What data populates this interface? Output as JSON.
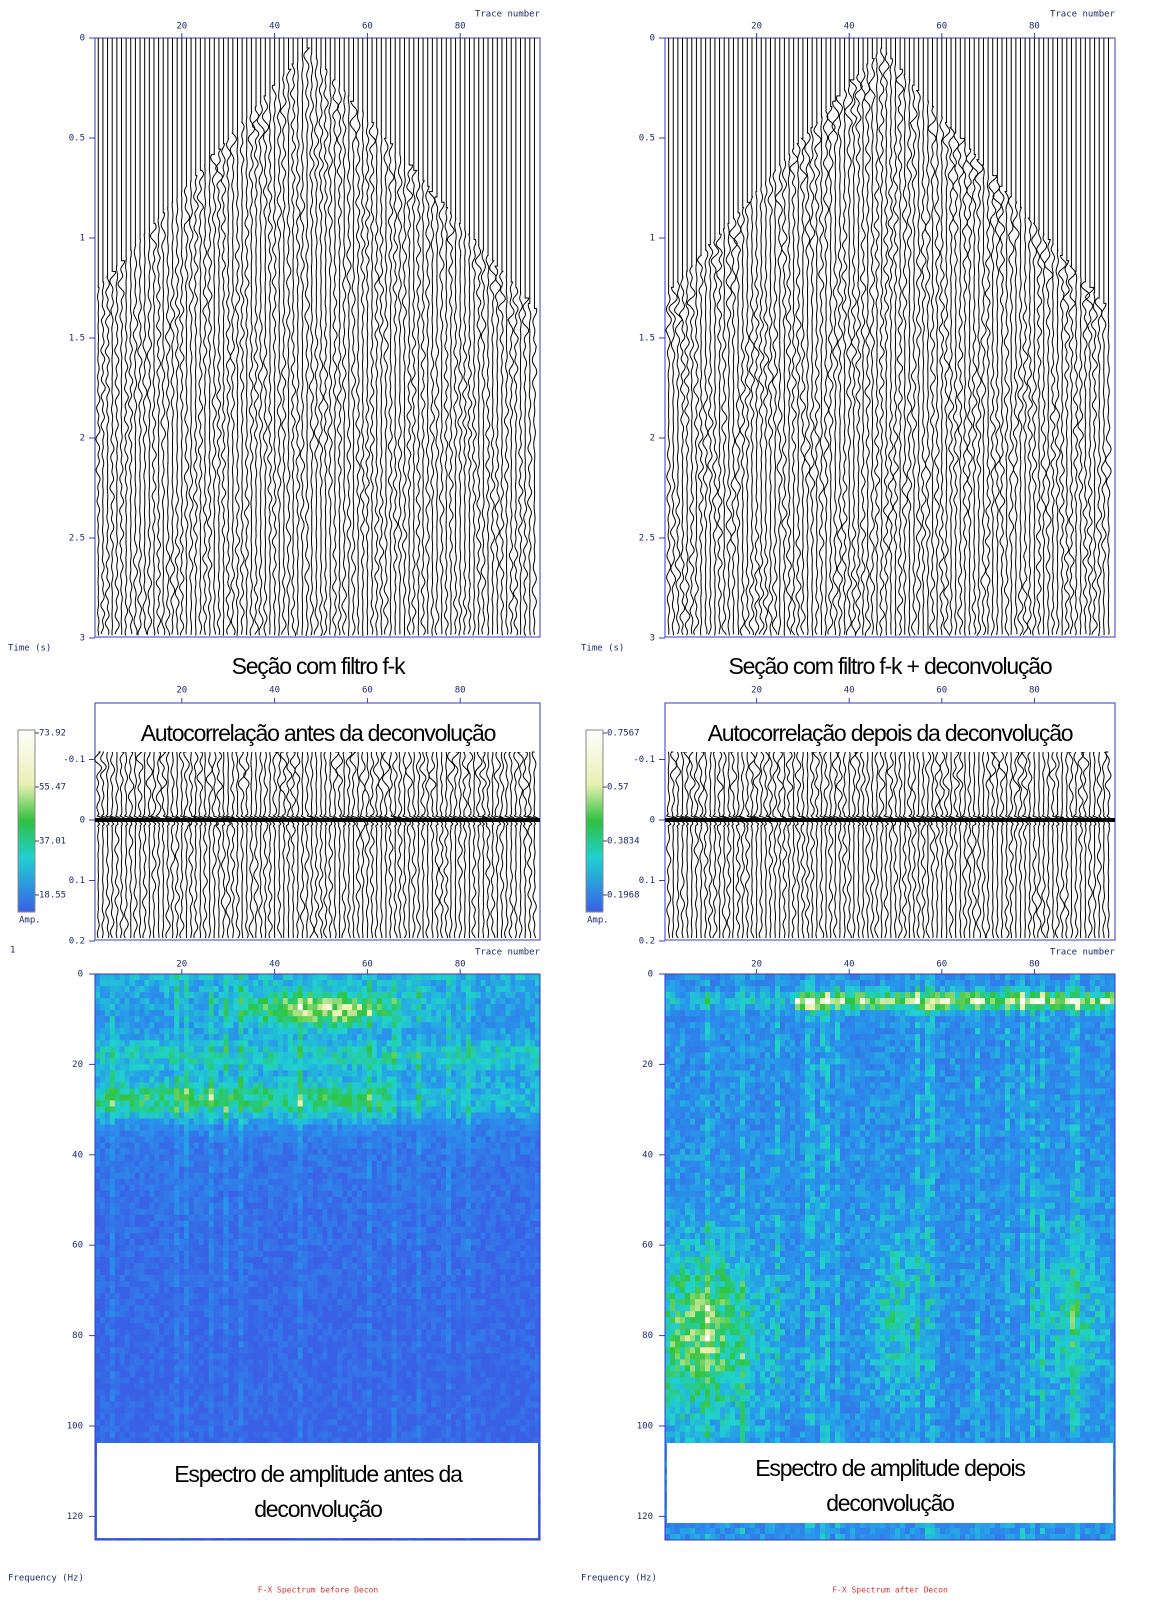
{
  "stray_mark": "1",
  "panels": [
    {
      "seismic": {
        "x_ticks": [
          20,
          40,
          60,
          80
        ],
        "x_axis_label": "Trace number",
        "y_ticks": [
          0,
          0.5,
          1,
          1.5,
          2,
          2.5,
          3
        ],
        "y_axis_label": "Time (s)",
        "caption": "Seção com filtro f-k"
      },
      "autocorrelation": {
        "x_ticks": [
          20,
          40,
          60,
          80
        ],
        "y_ticks": [
          -0.1,
          0,
          0.1,
          0.2
        ],
        "caption": "Autocorrelação antes da deconvolução"
      },
      "spectrum": {
        "x_ticks": [
          20,
          40,
          60,
          80
        ],
        "x_axis_label": "Trace number",
        "y_ticks": [
          0,
          20,
          40,
          60,
          80,
          100,
          120
        ],
        "y_axis_label": "Frequency (Hz)",
        "caption_lines": [
          "Espectro de amplitude antes da",
          "deconvolução"
        ],
        "colorbar_ticks": [
          73.92,
          55.47,
          37.01,
          18.55
        ],
        "colorbar_label": "Amp.",
        "footer": "F-X Spectrum before Decon"
      }
    },
    {
      "seismic": {
        "x_ticks": [
          20,
          40,
          60,
          80
        ],
        "x_axis_label": "Trace number",
        "y_ticks": [
          0,
          0.5,
          1,
          1.5,
          2,
          2.5,
          3
        ],
        "y_axis_label": "Time (s)",
        "caption": "Seção com filtro f-k + deconvolução"
      },
      "autocorrelation": {
        "x_ticks": [
          20,
          40,
          60,
          80
        ],
        "y_ticks": [
          -0.1,
          0,
          0.1,
          0.2
        ],
        "caption": "Autocorrelação depois da deconvolução"
      },
      "spectrum": {
        "x_ticks": [
          20,
          40,
          60,
          80
        ],
        "x_axis_label": "Trace number",
        "y_ticks": [
          0,
          20,
          40,
          60,
          80,
          100,
          120
        ],
        "y_axis_label": "Frequency (Hz)",
        "caption_lines": [
          "Espectro de amplitude depois",
          "deconvolução"
        ],
        "colorbar_ticks": [
          0.7567,
          0.57,
          0.3834,
          0.1968
        ],
        "colorbar_label": "Amp.",
        "footer": "F-X Spectrum after Decon"
      }
    }
  ]
}
